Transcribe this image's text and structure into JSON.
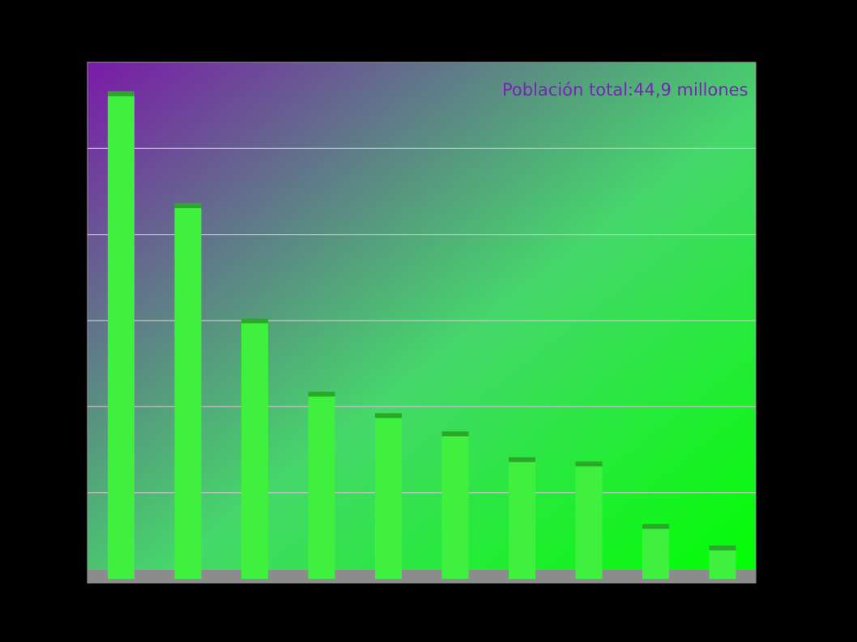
{
  "chart_data": {
    "type": "bar",
    "annotation": "Población total:44,9 millones",
    "values": [
      45.3,
      34.9,
      24.2,
      17.4,
      15.4,
      13.7,
      11.3,
      10.9,
      5.1,
      3.1
    ],
    "ylim": [
      0,
      48
    ],
    "grid": true,
    "colors": {
      "background_top": "#7a1aa8",
      "background_bottom": "#00ff00",
      "bar": "#3ff03f",
      "bar_cap": "#2aa82a",
      "floor": "#8c8c8c",
      "gridline": "#c8c8c8",
      "annotation": "#7a22b8"
    }
  }
}
